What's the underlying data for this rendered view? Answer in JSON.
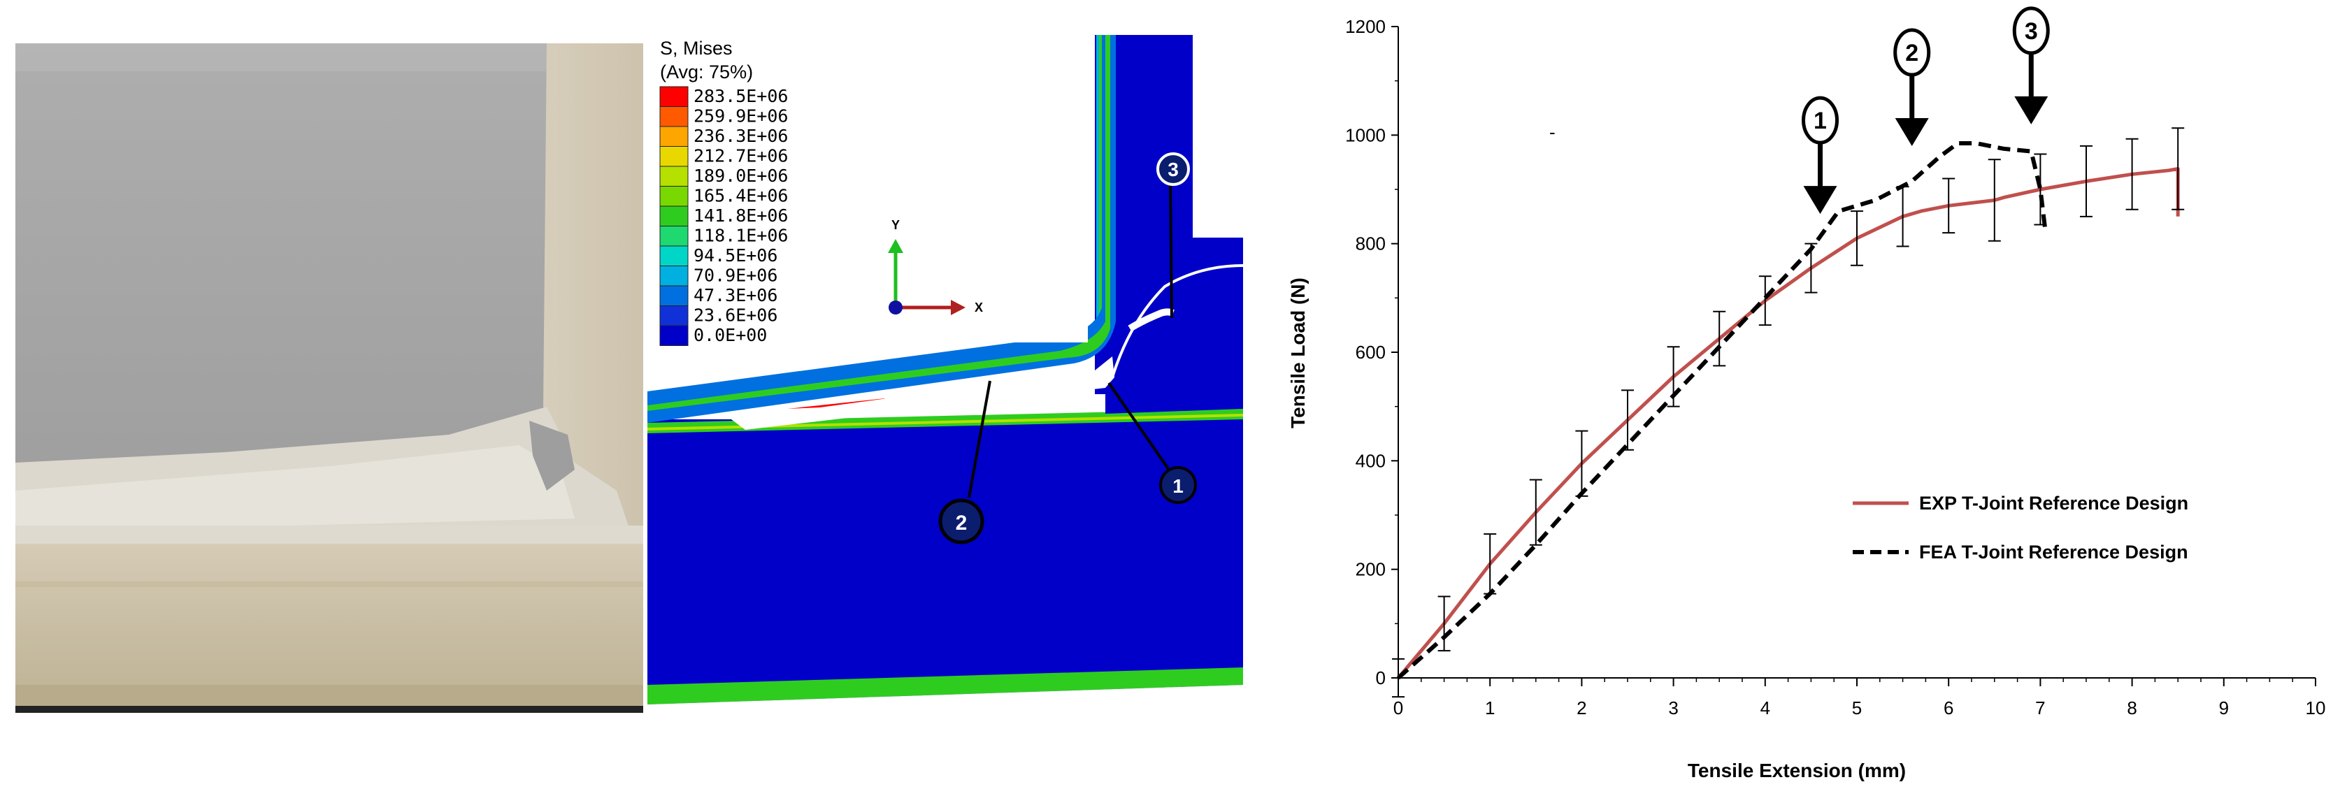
{
  "fea_panel": {
    "legend_title": "S, Mises",
    "legend_subtitle": "(Avg: 75%)",
    "legend_values": [
      "283.5E+06",
      "259.9E+06",
      "236.3E+06",
      "212.7E+06",
      "189.0E+06",
      "165.4E+06",
      "141.8E+06",
      "118.1E+06",
      "94.5E+06",
      "70.9E+06",
      "47.3E+06",
      "23.6E+06",
      "0.0E+00"
    ],
    "legend_colors": [
      "#ff0000",
      "#ff5a00",
      "#ffa500",
      "#e8d800",
      "#b5e000",
      "#79d800",
      "#2fcc20",
      "#1ed870",
      "#00d6c8",
      "#00b0e0",
      "#0070e0",
      "#1030d8",
      "#0000c8"
    ],
    "axis_y": "Y",
    "axis_x": "X",
    "callouts": [
      "1",
      "2",
      "3"
    ]
  },
  "chart_data": {
    "type": "line",
    "xlabel": "Tensile Extension  (mm)",
    "ylabel": "Tensile Load  (N)",
    "xlim": [
      0,
      10
    ],
    "ylim": [
      0,
      1200
    ],
    "xticks": [
      0,
      1,
      2,
      3,
      4,
      5,
      6,
      7,
      8,
      9,
      10
    ],
    "yticks": [
      0,
      200,
      400,
      600,
      800,
      1000,
      1200
    ],
    "legend_position": "center-right",
    "series": [
      {
        "name": "EXP  T-Joint  Reference  Design",
        "color": "#c0504d",
        "dash": "solid",
        "x": [
          0,
          0.5,
          1,
          1.5,
          2,
          2.5,
          3,
          3.5,
          4,
          4.5,
          5,
          5.5,
          5.7,
          6,
          6.5,
          6.6,
          7,
          7.5,
          8,
          8.4,
          8.5,
          8.5
        ],
        "y": [
          0,
          100,
          210,
          305,
          395,
          475,
          555,
          625,
          695,
          755,
          810,
          850,
          860,
          870,
          880,
          885,
          900,
          915,
          928,
          935,
          938,
          850
        ],
        "error": [
          35,
          50,
          55,
          60,
          60,
          55,
          55,
          50,
          45,
          45,
          50,
          55,
          0,
          50,
          75,
          0,
          65,
          65,
          65,
          0,
          75,
          0
        ]
      },
      {
        "name": "FEA  T-Joint  Reference  Design",
        "color": "#000000",
        "dash": "dashed",
        "x": [
          0,
          0.5,
          1,
          1.5,
          2,
          2.5,
          3,
          3.5,
          4,
          4.5,
          4.8,
          5.2,
          5.6,
          5.9,
          6.1,
          6.3,
          6.6,
          6.9,
          7.0,
          7.05
        ],
        "y": [
          0,
          75,
          155,
          245,
          340,
          430,
          520,
          610,
          700,
          790,
          860,
          880,
          915,
          960,
          985,
          985,
          975,
          970,
          900,
          830
        ]
      }
    ],
    "annotations": [
      {
        "label": "1",
        "x": 4.6,
        "y": 860
      },
      {
        "label": "2",
        "x": 5.6,
        "y": 985
      },
      {
        "label": "3",
        "x": 6.9,
        "y": 1025
      }
    ],
    "minor_mark": "-"
  }
}
